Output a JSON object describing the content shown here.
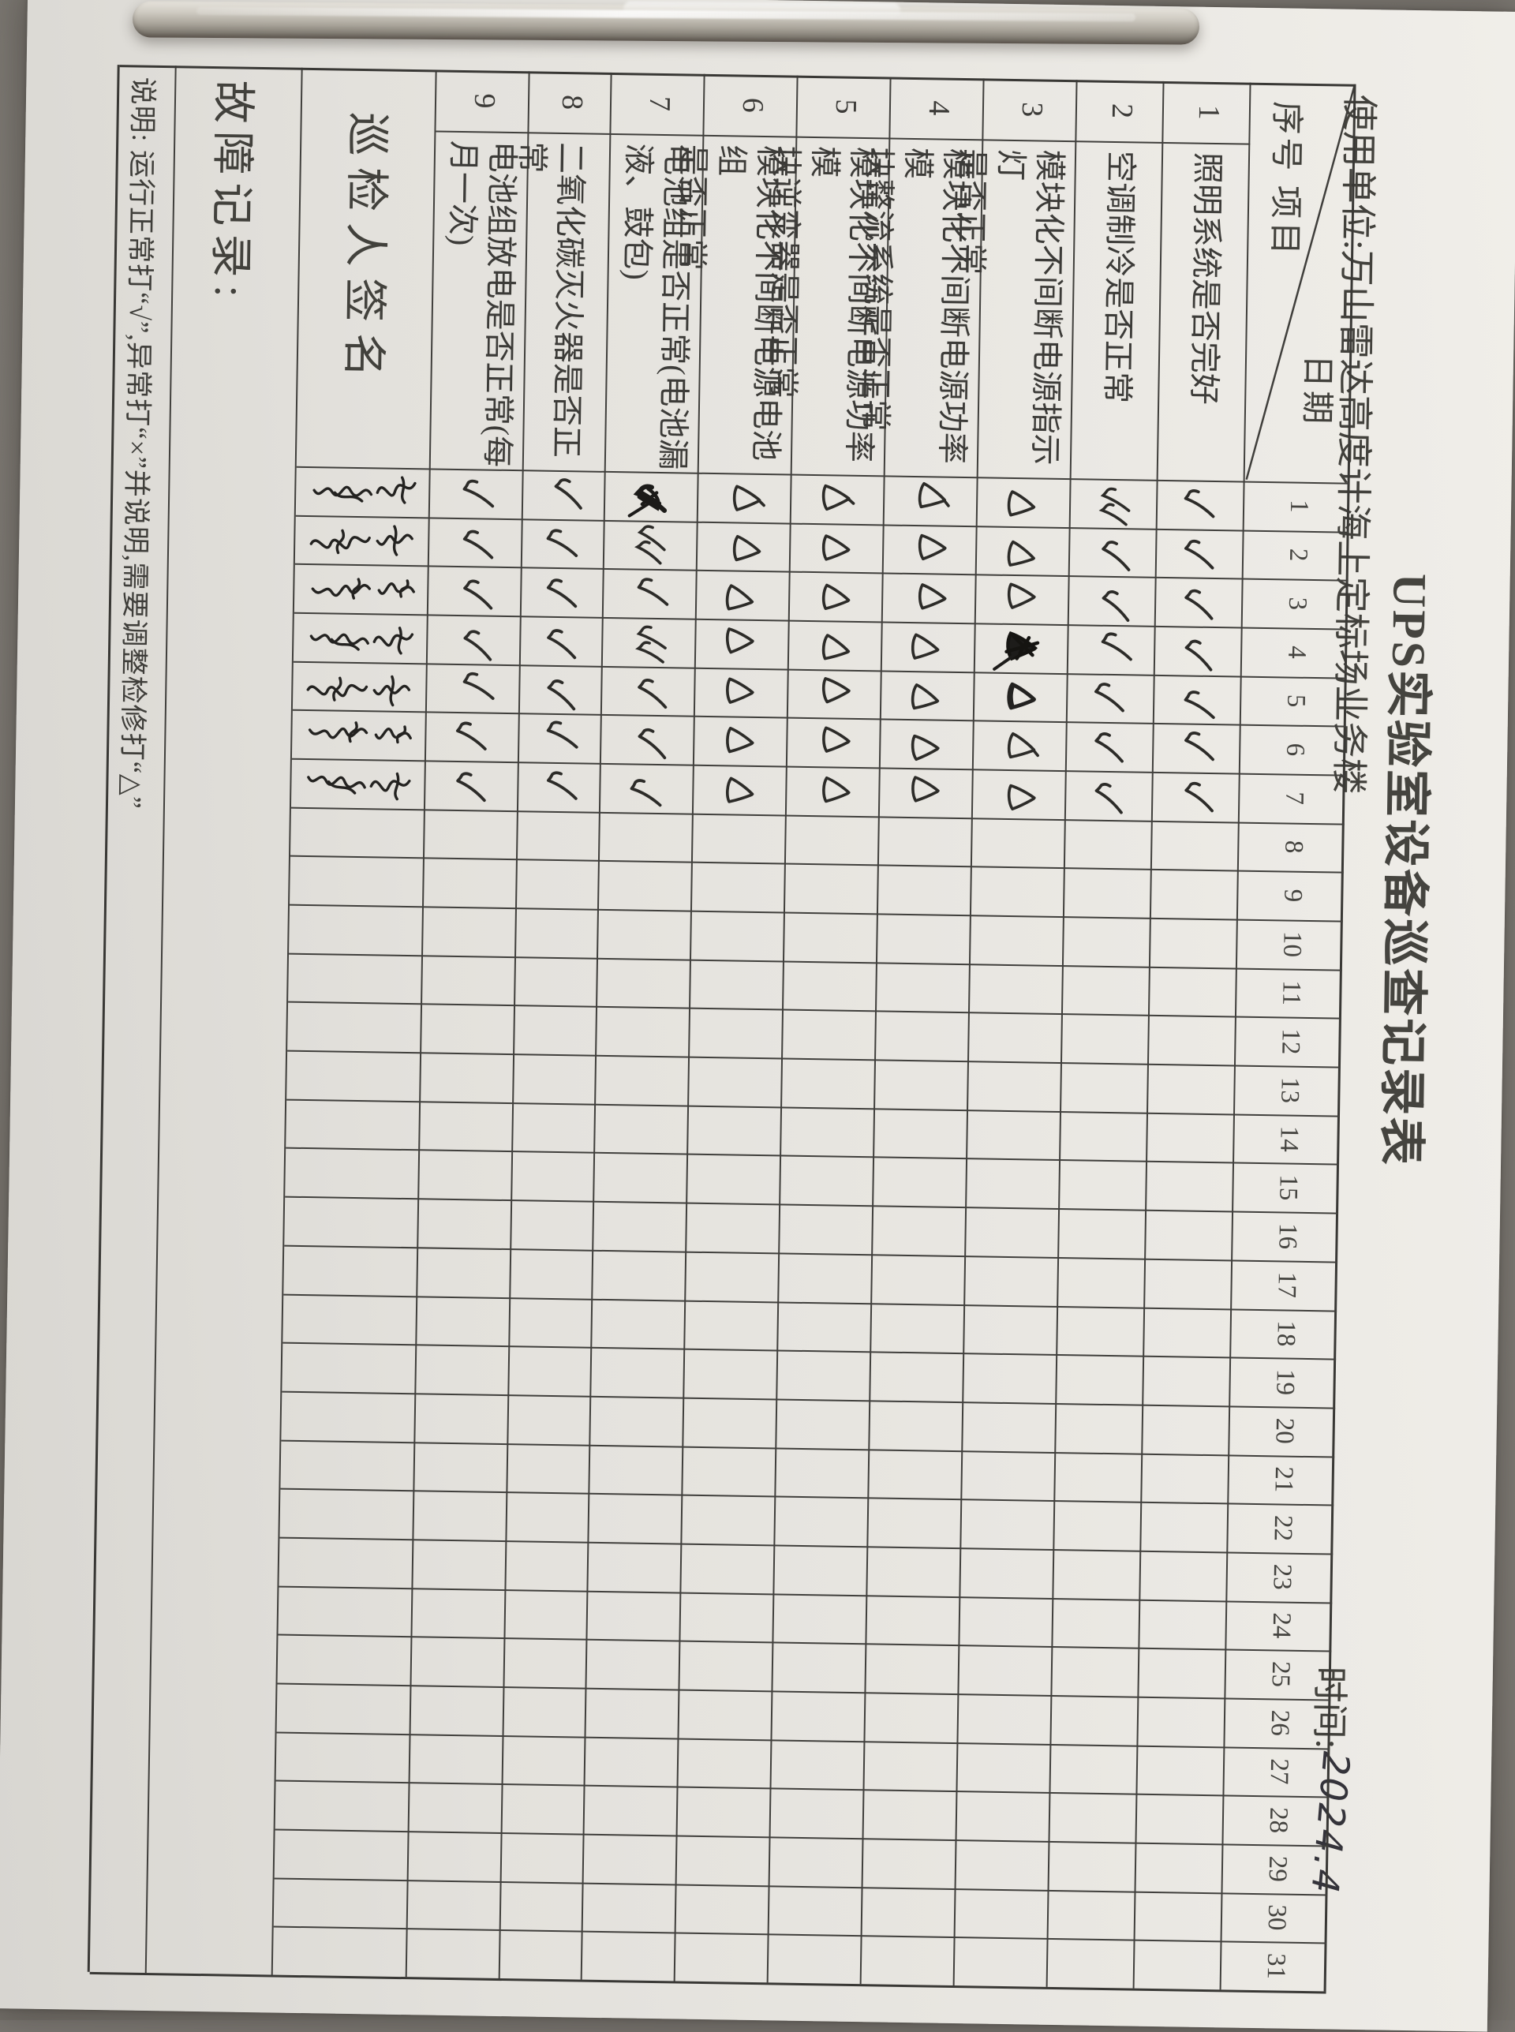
{
  "photo": {
    "background_color": "#7b7772",
    "paper_color": "#e9e7e2",
    "grid_line_color": "#403f3c",
    "pen_color": "#2c2b28",
    "clip": "metal-clipboard-clip"
  },
  "header": {
    "title": "UPS实验室设备巡查记录表",
    "use_unit_label": "使用单位:",
    "use_unit_value": "万山雷达高度计海上定标场业务楼",
    "time_label": "时间:",
    "time_value_handwritten": "2024.4"
  },
  "table": {
    "corner": {
      "serial_label": "序号",
      "item_label": "项目",
      "date_label": "日期"
    },
    "day_numbers": [
      1,
      2,
      3,
      4,
      5,
      6,
      7,
      8,
      9,
      10,
      11,
      12,
      13,
      14,
      15,
      16,
      17,
      18,
      19,
      20,
      21,
      22,
      23,
      24,
      25,
      26,
      27,
      28,
      29,
      30,
      31
    ],
    "mark_legend": {
      "check": "√",
      "check2": "√√ (double check)",
      "checkS": "heavy scribbled check (over-inked)",
      "tri": "△",
      "triT": "△ with tail stroke",
      "triD": "△ drawn dark with extra stroke",
      "triS": "heavy blacked-out scribbled △"
    },
    "rows": [
      {
        "no": "1",
        "item": "照明系统是否完好",
        "marks": {
          "1": "check",
          "2": "check",
          "3": "check",
          "4": "check",
          "5": "check",
          "6": "check",
          "7": "check"
        }
      },
      {
        "no": "2",
        "item": "空调制冷是否正常",
        "marks": {
          "1": "check2",
          "2": "check",
          "3": "check",
          "4": "check",
          "5": "check",
          "6": "check",
          "7": "check"
        }
      },
      {
        "no": "3",
        "item": "模块化不间断电源指示灯\n是否正常",
        "marks": {
          "1": "tri",
          "2": "tri",
          "3": "tri",
          "4": "triS",
          "5": "triD",
          "6": "triT",
          "7": "tri"
        }
      },
      {
        "no": "4",
        "item": "模块化不间断电源功率模\n块整流系统是否正常",
        "marks": {
          "1": "triT",
          "2": "tri",
          "3": "tri",
          "4": "tri",
          "5": "tri",
          "6": "tri",
          "7": "tri"
        }
      },
      {
        "no": "5",
        "item": "模块化不间断电源功率模\n块逆变器是否正常",
        "marks": {
          "1": "triT",
          "2": "tri",
          "3": "tri",
          "4": "tri",
          "5": "tri",
          "6": "tri",
          "7": "tri"
        }
      },
      {
        "no": "6",
        "item": "模块化不间断电源电池组\n是否正常",
        "marks": {
          "1": "triT",
          "2": "tri",
          "3": "tri",
          "4": "tri",
          "5": "tri",
          "6": "tri",
          "7": "tri"
        }
      },
      {
        "no": "7",
        "item": "电池组是否正常(电池漏\n液、鼓包)",
        "marks": {
          "1": "checkS",
          "2": "check2",
          "3": "check",
          "4": "check2",
          "5": "check",
          "6": "check",
          "7": "check"
        }
      },
      {
        "no": "8",
        "item": "二氧化碳灭火器是否正常",
        "marks": {
          "1": "check",
          "2": "check",
          "3": "check",
          "4": "check",
          "5": "check",
          "6": "check",
          "7": "check"
        }
      },
      {
        "no": "9",
        "item": "电池组放电是否正常(每\n月一次)",
        "marks": {
          "1": "check",
          "2": "check",
          "3": "check",
          "4": "check",
          "5": "check",
          "6": "check",
          "7": "check"
        }
      }
    ],
    "signature_row": {
      "label": "巡检人签名",
      "signed_days": [
        1,
        2,
        3,
        4,
        5,
        6,
        7
      ]
    },
    "fault_row_label": "故障记录:",
    "note_row": "说明: 运行正常打“√”,异常打“×”并说明,需要调整检修打“△”"
  }
}
